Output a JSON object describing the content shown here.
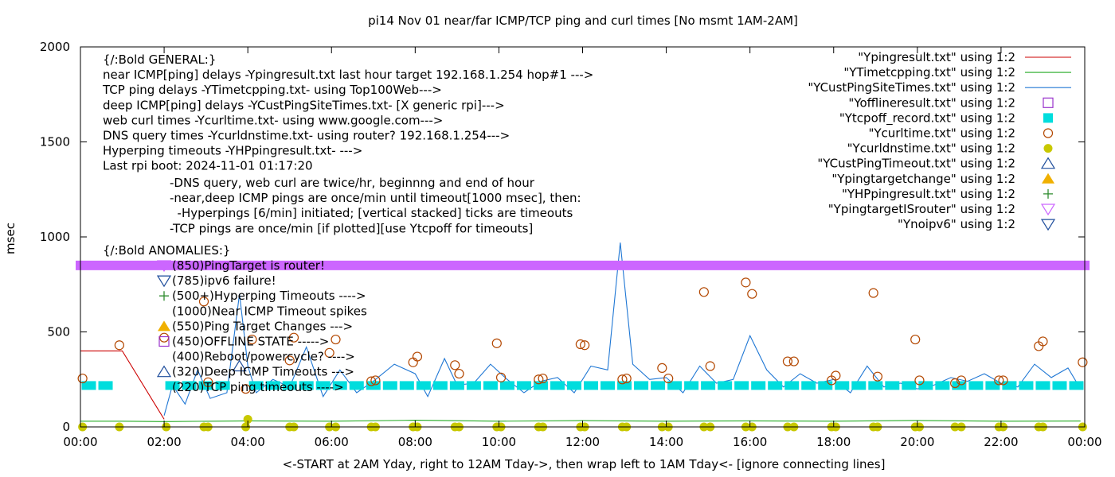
{
  "chart_data": {
    "type": "line",
    "title": "pi14 Nov 01  near/far ICMP/TCP ping and curl times [No msmt 1AM-2AM]",
    "ylabel": "msec",
    "xlabel": "<-START at 2AM Yday, right to 12AM Tday->, then wrap left to 1AM Tday<- [ignore connecting lines]",
    "xlim": [
      0,
      24
    ],
    "ylim": [
      0,
      2000
    ],
    "grid": false,
    "legend_position": "top-right",
    "x_ticks": [
      {
        "value": 0,
        "label": "00:00"
      },
      {
        "value": 2,
        "label": "02:00"
      },
      {
        "value": 4,
        "label": "04:00"
      },
      {
        "value": 6,
        "label": "06:00"
      },
      {
        "value": 8,
        "label": "08:00"
      },
      {
        "value": 10,
        "label": "10:00"
      },
      {
        "value": 12,
        "label": "12:00"
      },
      {
        "value": 14,
        "label": "14:00"
      },
      {
        "value": 16,
        "label": "16:00"
      },
      {
        "value": 18,
        "label": "18:00"
      },
      {
        "value": 20,
        "label": "20:00"
      },
      {
        "value": 22,
        "label": "22:00"
      },
      {
        "value": 24,
        "label": "00:00"
      }
    ],
    "y_ticks": [
      {
        "value": 0,
        "label": "0"
      },
      {
        "value": 500,
        "label": "500"
      },
      {
        "value": 1000,
        "label": "1000"
      },
      {
        "value": 1500,
        "label": "1500"
      },
      {
        "value": 2000,
        "label": "2000"
      }
    ],
    "annotations_general": [
      "{/:Bold GENERAL:}",
      "near ICMP[ping] delays -Ypingresult.txt last hour target 192.168.1.254 hop#1 --->",
      "TCP ping delays -YTimetcpping.txt- using Top100Web--->",
      "deep ICMP[ping] delays -YCustPingSiteTimes.txt- [X generic rpi]--->",
      "web curl times -Ycurltime.txt- using www.google.com--->",
      "DNS query times -Ycurldnstime.txt- using router? 192.168.1.254--->",
      "Hyperping timeouts -YHPpingresult.txt- --->",
      "Last rpi boot: 2024-11-01 01:17:20"
    ],
    "annotations_notes": [
      "-DNS query, web curl are twice/hr, beginnng and end of hour",
      "-near,deep ICMP pings are once/min until timeout[1000 msec], then:",
      "  -Hyperpings [6/min] initiated; [vertical stacked] ticks are timeouts",
      "-TCP pings are once/min [if plotted][use Ytcpoff for timeouts]"
    ],
    "anomalies_header": "{/:Bold ANOMALIES:}",
    "anomalies": [
      {
        "text": "(850)PingTarget is router!",
        "y": 850,
        "symbol": "triangle-down-open",
        "color": "#cc66ff"
      },
      {
        "text": "(785)ipv6 failure!",
        "y": 785,
        "symbol": "triangle-down-open",
        "color": "#1f4e9c"
      },
      {
        "text": "(500+)Hyperping Timeouts ---->",
        "y": 700,
        "symbol": "plus",
        "color": "#2e8b2e"
      },
      {
        "text": "(1000)Near ICMP Timeout spikes",
        "y": 620,
        "symbol": "none",
        "color": "#000000"
      },
      {
        "text": "(550)Ping Target Changes --->",
        "y": 550,
        "symbol": "triangle-up-filled",
        "color": "#f0b000"
      },
      {
        "text": "(450)OFFLINE STATE ----->",
        "y": 450,
        "symbol": "square-open",
        "color": "#9933cc"
      },
      {
        "text": "(400)Reboot/powercycle? ---->",
        "y": 400,
        "symbol": "none",
        "color": "#000000"
      },
      {
        "text": "(320)Deep ICMP Timeouts --->",
        "y": 320,
        "symbol": "triangle-up-open",
        "color": "#1f4e9c"
      },
      {
        "text": "(220)TCP ping timeouts ---->",
        "y": 230,
        "symbol": "none",
        "color": "#000000"
      }
    ],
    "series": [
      {
        "name": "\"Ypingresult.txt\" using 1:2",
        "legend_symbol": "line",
        "color": "#cc0000",
        "x": [
          0,
          1.0,
          2.0,
          2.0
        ],
        "y": [
          400,
          400,
          40,
          40
        ]
      },
      {
        "name": "\"YTimetcpping.txt\" using 1:2",
        "legend_symbol": "line",
        "color": "#22aa22",
        "x": [
          0,
          1.0,
          2.0,
          4.0,
          6.0,
          8.0,
          10.0,
          12.0,
          14.0,
          16.0,
          18.0,
          20.0,
          22.0,
          23.9
        ],
        "y": [
          30,
          30,
          28,
          32,
          30,
          35,
          30,
          33,
          30,
          32,
          30,
          34,
          30,
          31
        ]
      },
      {
        "name": "\"YCustPingSiteTimes.txt\" using 1:2",
        "legend_symbol": "line",
        "color": "#1f77d4",
        "x": [
          2.0,
          2.2,
          2.5,
          2.8,
          3.1,
          3.5,
          3.8,
          4.0,
          4.2,
          4.6,
          5.0,
          5.4,
          5.8,
          6.2,
          6.6,
          7.0,
          7.5,
          8.0,
          8.3,
          8.7,
          9.0,
          9.4,
          9.8,
          10.2,
          10.6,
          11.0,
          11.4,
          11.8,
          12.2,
          12.6,
          12.9,
          13.2,
          13.6,
          14.0,
          14.4,
          14.8,
          15.2,
          15.6,
          16.0,
          16.4,
          16.8,
          17.2,
          17.6,
          18.0,
          18.4,
          18.8,
          19.2,
          19.6,
          20.0,
          20.4,
          20.8,
          21.2,
          21.6,
          22.0,
          22.4,
          22.8,
          23.2,
          23.6,
          23.9
        ],
        "y": [
          60,
          220,
          120,
          300,
          150,
          180,
          700,
          320,
          180,
          250,
          210,
          420,
          160,
          300,
          180,
          240,
          330,
          280,
          160,
          360,
          220,
          230,
          330,
          250,
          180,
          240,
          260,
          180,
          320,
          300,
          970,
          330,
          250,
          260,
          180,
          320,
          230,
          250,
          480,
          300,
          210,
          280,
          230,
          250,
          180,
          320,
          210,
          230,
          200,
          220,
          260,
          240,
          280,
          230,
          210,
          330,
          260,
          310,
          200
        ]
      },
      {
        "name": "\"Yofflineresult.txt\" using 1:2",
        "legend_symbol": "square-open",
        "color": "#9933cc",
        "x": [],
        "y": []
      },
      {
        "name": "\"Ytcpoff_record.txt\" using 1:2",
        "legend_symbol": "square-filled",
        "color": "#00dddd",
        "x": [
          0.2,
          0.6,
          2.2,
          2.6,
          3.0,
          3.4,
          4.2,
          4.6,
          5.0,
          5.4,
          5.8,
          6.2,
          6.6,
          7.0,
          7.4,
          7.8,
          8.2,
          8.6,
          9.0,
          9.4,
          9.8,
          10.2,
          10.6,
          11.0,
          11.4,
          11.8,
          12.2,
          12.6,
          13.0,
          13.4,
          13.8,
          14.2,
          14.6,
          15.0,
          15.4,
          15.8,
          16.2,
          16.6,
          17.0,
          17.4,
          17.8,
          18.2,
          18.6,
          19.0,
          19.4,
          19.8,
          20.2,
          20.6,
          21.0,
          21.4,
          21.8,
          22.2,
          22.6,
          23.0,
          23.4,
          23.8
        ],
        "y": [
          220,
          220,
          220,
          220,
          220,
          220,
          220,
          220,
          220,
          220,
          220,
          220,
          220,
          220,
          220,
          220,
          220,
          220,
          220,
          220,
          220,
          220,
          220,
          220,
          220,
          220,
          220,
          220,
          220,
          220,
          220,
          220,
          220,
          220,
          220,
          220,
          220,
          220,
          220,
          220,
          220,
          220,
          220,
          220,
          220,
          220,
          220,
          220,
          220,
          220,
          220,
          220,
          220,
          220,
          220,
          220
        ]
      },
      {
        "name": "\"Ycurltime.txt\" using 1:2",
        "legend_symbol": "circle-open",
        "color": "#b34700",
        "x": [
          0.05,
          0.93,
          2.0,
          2.95,
          3.05,
          3.95,
          4.1,
          5.0,
          5.1,
          5.95,
          6.1,
          6.95,
          7.05,
          7.95,
          8.05,
          8.95,
          9.05,
          9.95,
          10.05,
          10.95,
          11.05,
          11.95,
          12.05,
          12.95,
          13.05,
          13.9,
          14.05,
          14.9,
          15.05,
          15.9,
          16.05,
          16.9,
          17.05,
          17.95,
          18.05,
          18.95,
          19.05,
          19.95,
          20.05,
          20.9,
          21.05,
          21.95,
          22.05,
          22.9,
          23.0,
          23.95
        ],
        "y": [
          255,
          430,
          470,
          660,
          235,
          200,
          460,
          350,
          470,
          390,
          460,
          240,
          245,
          340,
          370,
          325,
          280,
          440,
          260,
          250,
          255,
          435,
          430,
          250,
          255,
          310,
          255,
          710,
          320,
          760,
          700,
          345,
          345,
          245,
          270,
          705,
          265,
          460,
          245,
          230,
          245,
          245,
          245,
          425,
          450,
          340
        ]
      },
      {
        "name": "\"Ycurldnstime.txt\" using 1:2",
        "legend_symbol": "circle-filled",
        "color": "#c8c800",
        "x": [
          0.05,
          0.93,
          2.05,
          2.95,
          3.05,
          3.95,
          4.0,
          5.0,
          5.1,
          5.95,
          6.1,
          6.95,
          7.05,
          7.95,
          8.05,
          8.95,
          9.05,
          9.95,
          10.05,
          10.95,
          11.05,
          11.95,
          12.05,
          12.95,
          13.05,
          13.9,
          14.05,
          14.9,
          15.05,
          15.9,
          16.05,
          16.9,
          17.05,
          17.95,
          18.05,
          18.95,
          19.05,
          19.95,
          20.05,
          20.9,
          21.05,
          21.95,
          22.05,
          22.9,
          23.0,
          23.95
        ],
        "y": [
          0,
          0,
          0,
          0,
          0,
          0,
          40,
          0,
          0,
          0,
          0,
          0,
          0,
          0,
          0,
          0,
          0,
          0,
          0,
          0,
          0,
          0,
          0,
          0,
          0,
          0,
          0,
          0,
          0,
          0,
          0,
          0,
          0,
          0,
          0,
          0,
          0,
          0,
          0,
          0,
          0,
          0,
          0,
          0,
          0,
          0
        ]
      },
      {
        "name": "\"YCustPingTimeout.txt\" using 1:2",
        "legend_symbol": "triangle-up-open",
        "color": "#1f4e9c",
        "x": [
          3.8
        ],
        "y": [
          320
        ]
      },
      {
        "name": "\"Ypingtargetchange\" using 1:2",
        "legend_symbol": "triangle-up-filled",
        "color": "#f0b000",
        "x": [],
        "y": []
      },
      {
        "name": "\"YHPpingresult.txt\" using 1:2",
        "legend_symbol": "plus",
        "color": "#2e8b2e",
        "x": [],
        "y": []
      },
      {
        "name": "\"YpingtargetISrouter\" using 1:2",
        "legend_symbol": "triangle-down-open",
        "color": "#cc66ff",
        "x": [
          0.0,
          24.0
        ],
        "y": [
          850,
          850
        ]
      },
      {
        "name": "\"Ynoipv6\" using 1:2",
        "legend_symbol": "triangle-down-open",
        "color": "#1f4e9c",
        "x": [],
        "y": []
      }
    ]
  }
}
